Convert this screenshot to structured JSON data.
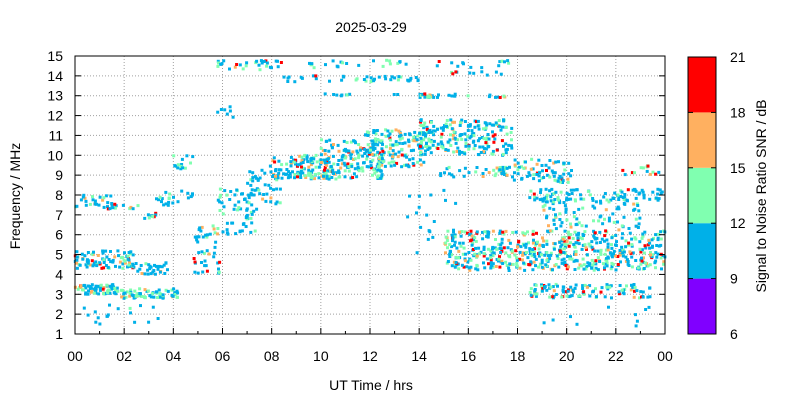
{
  "chart_data": {
    "type": "heatmap",
    "title": "2025-03-29",
    "xlabel": "UT Time / hrs",
    "ylabel": "Frequency / MHz",
    "xlim": [
      0,
      24
    ],
    "ylim": [
      1,
      15
    ],
    "x_ticks": [
      "00",
      "02",
      "04",
      "06",
      "08",
      "10",
      "12",
      "14",
      "16",
      "18",
      "20",
      "22",
      "00"
    ],
    "y_ticks": [
      "1",
      "2",
      "3",
      "4",
      "5",
      "6",
      "7",
      "8",
      "9",
      "10",
      "11",
      "12",
      "13",
      "14",
      "15"
    ],
    "grid": true,
    "colorbar": {
      "label": "Signal to Noise Ratio SNR / dB",
      "ticks": [
        "6",
        "9",
        "12",
        "15",
        "18",
        "21"
      ],
      "range": [
        6,
        21
      ],
      "bands": [
        {
          "from": 6,
          "to": 9,
          "color": "#8000ff"
        },
        {
          "from": 9,
          "to": 12,
          "color": "#00b0e8"
        },
        {
          "from": 12,
          "to": 15,
          "color": "#80ffb0"
        },
        {
          "from": 15,
          "to": 18,
          "color": "#ffb060"
        },
        {
          "from": 18,
          "to": 21,
          "color": "#ff0000"
        }
      ]
    },
    "clusters": [
      {
        "t": [
          0.0,
          1.8
        ],
        "f": [
          3.0,
          3.5
        ],
        "n": 70,
        "mix": [
          0.55,
          0.3,
          0.1,
          0.05
        ]
      },
      {
        "t": [
          1.8,
          4.2
        ],
        "f": [
          2.8,
          3.3
        ],
        "n": 70,
        "mix": [
          0.6,
          0.3,
          0.1,
          0.0
        ]
      },
      {
        "t": [
          0.0,
          2.4
        ],
        "f": [
          4.3,
          5.2
        ],
        "n": 90,
        "mix": [
          0.55,
          0.25,
          0.1,
          0.1
        ]
      },
      {
        "t": [
          2.4,
          3.8
        ],
        "f": [
          4.0,
          4.6
        ],
        "n": 30,
        "mix": [
          0.8,
          0.15,
          0.05,
          0.0
        ]
      },
      {
        "t": [
          0.0,
          3.5
        ],
        "f": [
          1.5,
          2.5
        ],
        "n": 18,
        "mix": [
          0.9,
          0.1,
          0.0,
          0.0
        ]
      },
      {
        "t": [
          0.0,
          1.6
        ],
        "f": [
          7.3,
          8.0
        ],
        "n": 25,
        "mix": [
          0.85,
          0.1,
          0.05,
          0.0
        ]
      },
      {
        "t": [
          1.2,
          2.6
        ],
        "f": [
          7.3,
          7.6
        ],
        "n": 12,
        "mix": [
          0.6,
          0.2,
          0.1,
          0.1
        ]
      },
      {
        "t": [
          2.8,
          3.5
        ],
        "f": [
          6.8,
          7.1
        ],
        "n": 8,
        "mix": [
          0.5,
          0.2,
          0.0,
          0.3
        ]
      },
      {
        "t": [
          3.3,
          4.2
        ],
        "f": [
          7.4,
          7.9
        ],
        "n": 12,
        "mix": [
          0.8,
          0.1,
          0.1,
          0.0
        ]
      },
      {
        "t": [
          3.6,
          4.8
        ],
        "f": [
          7.8,
          8.2
        ],
        "n": 10,
        "mix": [
          0.7,
          0.3,
          0.0,
          0.0
        ]
      },
      {
        "t": [
          4.0,
          4.8
        ],
        "f": [
          9.3,
          10.0
        ],
        "n": 14,
        "mix": [
          0.4,
          0.3,
          0.1,
          0.2
        ]
      },
      {
        "t": [
          4.8,
          5.9
        ],
        "f": [
          4.0,
          6.5
        ],
        "n": 45,
        "mix": [
          0.6,
          0.2,
          0.15,
          0.05
        ]
      },
      {
        "t": [
          5.8,
          7.4
        ],
        "f": [
          6.0,
          8.5
        ],
        "n": 60,
        "mix": [
          0.75,
          0.2,
          0.05,
          0.0
        ]
      },
      {
        "t": [
          5.6,
          7.0
        ],
        "f": [
          11.5,
          12.7
        ],
        "n": 7,
        "mix": [
          1.0,
          0.0,
          0.0,
          0.0
        ]
      },
      {
        "t": [
          5.8,
          8.4
        ],
        "f": [
          14.3,
          14.8
        ],
        "n": 30,
        "mix": [
          0.6,
          0.2,
          0.1,
          0.1
        ]
      },
      {
        "t": [
          7.0,
          8.4
        ],
        "f": [
          7.5,
          9.5
        ],
        "n": 45,
        "mix": [
          0.75,
          0.2,
          0.05,
          0.0
        ]
      },
      {
        "t": [
          8.0,
          10.5
        ],
        "f": [
          8.8,
          10.0
        ],
        "n": 130,
        "mix": [
          0.55,
          0.3,
          0.1,
          0.05
        ]
      },
      {
        "t": [
          10.0,
          12.5
        ],
        "f": [
          8.8,
          10.8
        ],
        "n": 160,
        "mix": [
          0.55,
          0.3,
          0.1,
          0.05
        ]
      },
      {
        "t": [
          11.8,
          14.3
        ],
        "f": [
          9.4,
          11.3
        ],
        "n": 150,
        "mix": [
          0.55,
          0.3,
          0.1,
          0.05
        ]
      },
      {
        "t": [
          8.5,
          14.0
        ],
        "f": [
          13.7,
          14.0
        ],
        "n": 40,
        "mix": [
          0.75,
          0.15,
          0.0,
          0.1
        ]
      },
      {
        "t": [
          9.5,
          13.5
        ],
        "f": [
          14.4,
          14.8
        ],
        "n": 22,
        "mix": [
          0.8,
          0.2,
          0.0,
          0.0
        ]
      },
      {
        "t": [
          10.0,
          15.0
        ],
        "f": [
          12.9,
          13.1
        ],
        "n": 14,
        "mix": [
          0.85,
          0.15,
          0.0,
          0.0
        ]
      },
      {
        "t": [
          14.0,
          17.8
        ],
        "f": [
          10.0,
          11.8
        ],
        "n": 210,
        "mix": [
          0.65,
          0.25,
          0.05,
          0.05
        ]
      },
      {
        "t": [
          14.0,
          17.6
        ],
        "f": [
          12.9,
          13.1
        ],
        "n": 28,
        "mix": [
          0.6,
          0.2,
          0.1,
          0.1
        ]
      },
      {
        "t": [
          14.5,
          17.8
        ],
        "f": [
          14.0,
          14.9
        ],
        "n": 24,
        "mix": [
          0.8,
          0.1,
          0.0,
          0.1
        ]
      },
      {
        "t": [
          14.8,
          17.8
        ],
        "f": [
          8.9,
          9.4
        ],
        "n": 40,
        "mix": [
          0.7,
          0.2,
          0.1,
          0.0
        ]
      },
      {
        "t": [
          17.8,
          20.2
        ],
        "f": [
          8.6,
          9.8
        ],
        "n": 70,
        "mix": [
          0.55,
          0.3,
          0.1,
          0.05
        ]
      },
      {
        "t": [
          15.0,
          24.0
        ],
        "f": [
          4.2,
          6.2
        ],
        "n": 560,
        "mix": [
          0.5,
          0.3,
          0.1,
          0.1
        ]
      },
      {
        "t": [
          18.5,
          23.5
        ],
        "f": [
          2.8,
          3.5
        ],
        "n": 110,
        "mix": [
          0.55,
          0.25,
          0.1,
          0.1
        ]
      },
      {
        "t": [
          18.5,
          24.0
        ],
        "f": [
          7.7,
          8.3
        ],
        "n": 90,
        "mix": [
          0.8,
          0.15,
          0.0,
          0.05
        ]
      },
      {
        "t": [
          19.0,
          23.0
        ],
        "f": [
          6.2,
          7.8
        ],
        "n": 90,
        "mix": [
          0.6,
          0.3,
          0.1,
          0.0
        ]
      },
      {
        "t": [
          13.5,
          15.5
        ],
        "f": [
          5.0,
          8.3
        ],
        "n": 20,
        "mix": [
          1.0,
          0.0,
          0.0,
          0.0
        ]
      },
      {
        "t": [
          22.0,
          24.0
        ],
        "f": [
          9.0,
          9.5
        ],
        "n": 14,
        "mix": [
          0.4,
          0.3,
          0.1,
          0.2
        ]
      },
      {
        "t": [
          18.0,
          24.0
        ],
        "f": [
          1.3,
          2.5
        ],
        "n": 10,
        "mix": [
          0.9,
          0.1,
          0.0,
          0.0
        ]
      }
    ]
  }
}
